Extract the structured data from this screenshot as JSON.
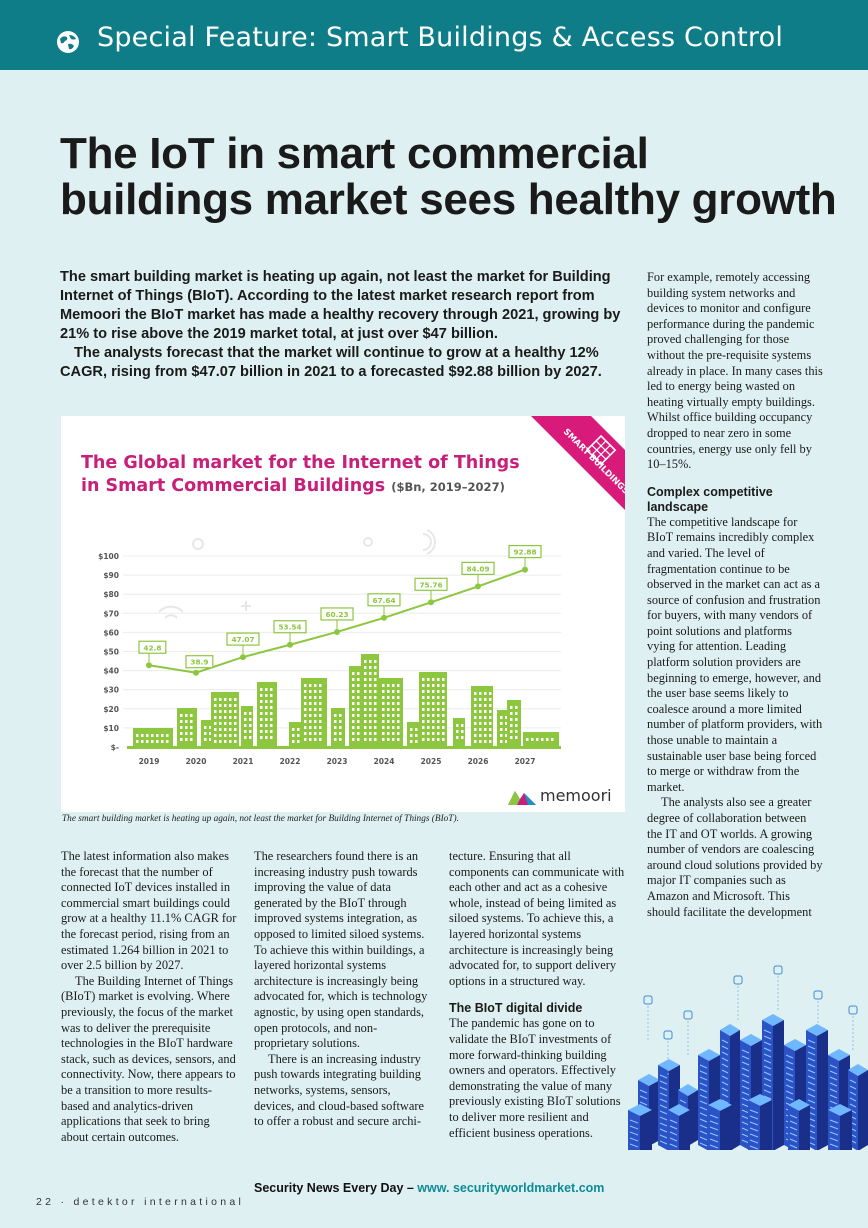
{
  "banner": {
    "title": "Special Feature: Smart Buildings & Access Control",
    "icon": "globe-icon"
  },
  "headline": "The IoT in smart commercial buildings market sees healthy growth",
  "lead": [
    "The smart building market is heating up again, not least the market for Building Internet of Things (BIoT). According to the latest market research report from Memoori the BIoT market has made a healthy recovery through 2021, growing by 21% to rise above the 2019 market total, at just over $47 billion.",
    "The analysts forecast that the market will continue to grow at a healthy 12% CAGR, rising from $47.07 billion in 2021 to a forecasted $92.88 billion by 2027."
  ],
  "chart_data": {
    "type": "line",
    "title_main": "The Global market for the Internet of Things in Smart Commercial Buildings",
    "title_unit": "($Bn, 2019–2027)",
    "x": [
      "2019",
      "2020",
      "2021",
      "2022",
      "2023",
      "2024",
      "2025",
      "2026",
      "2027"
    ],
    "values": [
      42.8,
      38.9,
      47.07,
      53.54,
      60.23,
      67.64,
      75.76,
      84.09,
      92.88
    ],
    "value_labels": [
      "42.8",
      "38.9",
      "47.07",
      "53.54",
      "60.23",
      "67.64",
      "75.76",
      "84.09",
      "92.88"
    ],
    "y_ticks": [
      "$100",
      "$90",
      "$80",
      "$70",
      "$60",
      "$50",
      "$40",
      "$30",
      "$20",
      "$10",
      "$-"
    ],
    "ylim": [
      0,
      100
    ],
    "grid": true,
    "colors": {
      "line": "#8dc63f",
      "labels": "#8dc63f",
      "buildings": "#8dc63f",
      "title": "#c7207a",
      "ribbon": "#d81b7a"
    },
    "ribbon_text": "SMART BUILDINGS",
    "logo_text": "memoori"
  },
  "caption": "The smart building market is heating up again, not least the market for Building Internet of Things (BIoT).",
  "col1": [
    "The latest information also makes the forecast that the number of connected IoT devices installed in commercial smart buildings could grow at a healthy 11.1% CAGR for the forecast period, rising from an estimated 1.264 billion in 2021 to over 2.5 billion by 2027.",
    "The Building Internet of Things (BIoT) market is evolving. Where previously, the focus of the market was to deliver the prerequisite technologies in the BIoT hardware stack, such as devices, sensors, and connectivity. Now, there appears to be a transition to more results-based and analytics-driven applications that seek to bring about certain outcomes."
  ],
  "col2": [
    "The researchers found there is an increasing industry push towards improving the value of data generated by the BIoT through improved systems integration, as opposed to limited siloed systems. To achieve this within buildings, a layered horizontal systems architecture is increasingly being advocated for, which is technology agnostic, by using open standards, open protocols, and non-proprietary solutions.",
    "There is an increasing industry push towards integrating building networks, systems, sensors, devices, and cloud-based software to offer a robust and secure archi-"
  ],
  "col3": {
    "intro": "tecture. Ensuring that all components can communicate with each other and act as a cohesive whole, instead of being limited as siloed systems. To achieve this, a layered horizontal systems architecture is increasingly being advocated for, to support delivery options in a structured way.",
    "subhead": "The BIoT digital divide",
    "body": "The pandemic has gone on to validate the BIoT investments of more forward-thinking building owners and operators. Effectively demonstrating the value of many previously existing BIoT solutions to deliver more resilient and efficient business operations."
  },
  "col_right": {
    "intro": "For example, remotely accessing building system networks and devices to monitor and configure performance during the pandemic proved challenging for those without the pre-requisite systems already in place. In many cases this led to energy being wasted on heating virtually empty buildings. Whilst office building occupancy dropped to near zero in some countries, energy use only fell by 10–15%.",
    "subhead": "Complex competitive landscape",
    "body": [
      "The competitive landscape for BIoT remains incredibly complex and varied. The level of fragmentation continue to be observed in the market can act as a source of confusion and frustration for buyers, with many vendors of point solutions and platforms vying for attention. Leading platform solution providers are beginning to emerge, however, and the user base seems likely to coalesce around a more limited number of platform providers, with those unable to maintain a sustainable user base being forced to merge or withdraw from the market.",
      "The analysts also see a greater degree of collaboration between the IT and OT worlds. A growing number of vendors are coalescing around cloud solutions provided by major IT companies such as Amazon and Microsoft. This should facilitate the development"
    ]
  },
  "footer": {
    "tagline": "Security News Every Day – ",
    "url": "www. securityworldmarket.com",
    "folio": "22 · detektor international"
  }
}
